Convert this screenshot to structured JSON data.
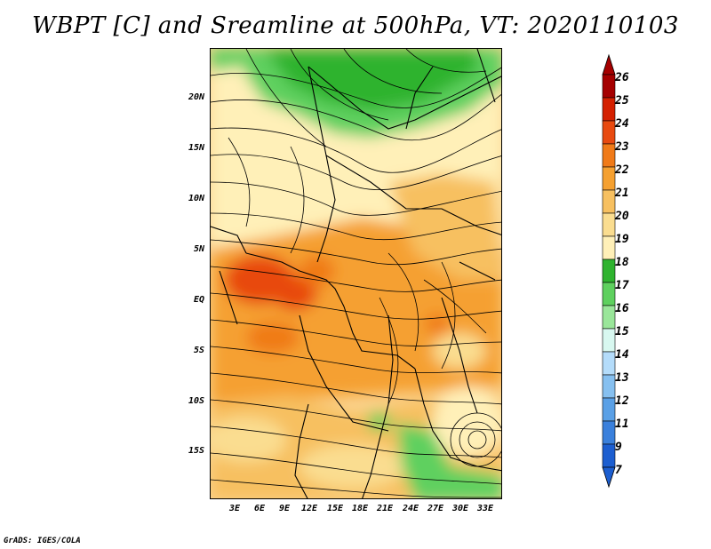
{
  "title": "WBPT [C] and Sreamline at 500hPa, VT: 2020110103",
  "credit": "GrADS: IGES/COLA",
  "lat_axis": [
    "20N",
    "15N",
    "10N",
    "5N",
    "EQ",
    "5S",
    "10S",
    "15S"
  ],
  "lon_axis": [
    "3E",
    "6E",
    "9E",
    "12E",
    "15E",
    "18E",
    "21E",
    "24E",
    "27E",
    "30E",
    "33E"
  ],
  "colorbar": {
    "labels": [
      "26",
      "25",
      "24",
      "23",
      "22",
      "21",
      "20",
      "19",
      "18",
      "17",
      "16",
      "15",
      "14",
      "13",
      "12",
      "11",
      "9",
      "7"
    ],
    "colors": [
      "#a50000",
      "#d42000",
      "#e84a10",
      "#f07a18",
      "#f5a030",
      "#f7c060",
      "#fadd90",
      "#fff0b8",
      "#2fb32f",
      "#5ed05e",
      "#9ae69a",
      "#d8f8f0",
      "#b4dcfa",
      "#86c0f0",
      "#5aa0e6",
      "#3a80dc",
      "#1c5ed0"
    ]
  }
}
